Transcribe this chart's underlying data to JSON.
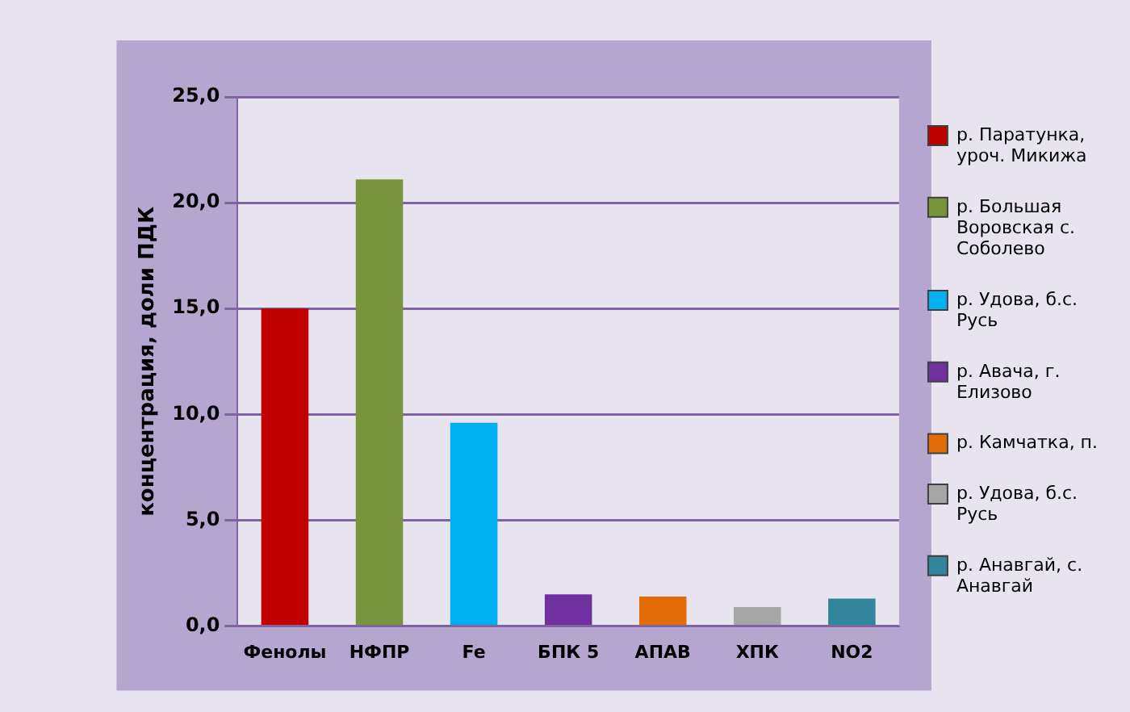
{
  "chart_data": {
    "type": "bar",
    "ylabel": "концентрация, доли ПДК",
    "categories": [
      "Фенолы",
      "НФПР",
      "Fe",
      "БПК 5",
      "АПАВ",
      "ХПК",
      "NO2"
    ],
    "series": [
      {
        "name": "р. Паратунка, уроч. Микижа",
        "color": "#c00000",
        "values": [
          15.0,
          null,
          null,
          null,
          null,
          null,
          null
        ]
      },
      {
        "name": "р. Большая Воровская с. Соболево",
        "color": "#77933c",
        "values": [
          null,
          21.1,
          null,
          null,
          null,
          null,
          null
        ]
      },
      {
        "name": "р. Удова, б.с. Русь",
        "color": "#00b0f0",
        "values": [
          null,
          null,
          9.6,
          null,
          null,
          null,
          null
        ]
      },
      {
        "name": "р. Авача, г. Елизово",
        "color": "#7030a0",
        "values": [
          null,
          null,
          null,
          1.5,
          null,
          null,
          null
        ]
      },
      {
        "name": "р. Камчатка, п.",
        "color": "#e36c09",
        "values": [
          null,
          null,
          null,
          null,
          1.4,
          null,
          null
        ]
      },
      {
        "name": "р. Удова, б.с. Русь",
        "color": "#a6a6a6",
        "values": [
          null,
          null,
          null,
          null,
          null,
          0.9,
          null
        ]
      },
      {
        "name": "р. Анавгай, с. Анавгай",
        "color": "#31859c",
        "values": [
          null,
          null,
          null,
          null,
          null,
          null,
          1.3
        ]
      }
    ],
    "ylim": [
      0,
      25
    ],
    "yticks": [
      {
        "value": 0,
        "label": "0,0"
      },
      {
        "value": 5,
        "label": "5,0"
      },
      {
        "value": 10,
        "label": "10,0"
      },
      {
        "value": 15,
        "label": "15,0"
      },
      {
        "value": 20,
        "label": "20,0"
      },
      {
        "value": 25,
        "label": "25,0"
      }
    ],
    "grid": "y",
    "legend": "right"
  }
}
